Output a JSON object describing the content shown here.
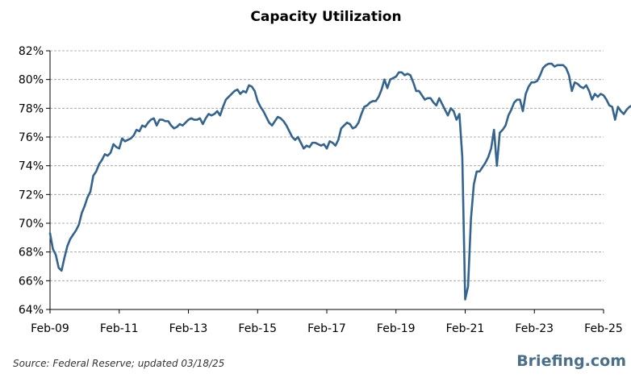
{
  "source": "Source: Federal Reserve; updated 03/18/25",
  "brand": "Briefing.com",
  "chart_data": {
    "type": "line",
    "title": "Capacity Utilization",
    "xlabel": "",
    "ylabel": "",
    "ylim": [
      64,
      82
    ],
    "yticks": [
      {
        "v": 64,
        "label": "64%"
      },
      {
        "v": 66,
        "label": "66%"
      },
      {
        "v": 68,
        "label": "68%"
      },
      {
        "v": 70,
        "label": "70%"
      },
      {
        "v": 72,
        "label": "72%"
      },
      {
        "v": 74,
        "label": "74%"
      },
      {
        "v": 76,
        "label": "76%"
      },
      {
        "v": 78,
        "label": "78%"
      },
      {
        "v": 80,
        "label": "80%"
      },
      {
        "v": 82,
        "label": "82%"
      }
    ],
    "xticks": [
      {
        "v": "2009-02",
        "label": "Feb-09"
      },
      {
        "v": "2011-02",
        "label": "Feb-11"
      },
      {
        "v": "2013-02",
        "label": "Feb-13"
      },
      {
        "v": "2015-02",
        "label": "Feb-15"
      },
      {
        "v": "2017-02",
        "label": "Feb-17"
      },
      {
        "v": "2019-02",
        "label": "Feb-19"
      },
      {
        "v": "2021-02",
        "label": "Feb-21"
      },
      {
        "v": "2023-02",
        "label": "Feb-23"
      },
      {
        "v": "2025-02",
        "label": "Feb-25"
      }
    ],
    "grid": true,
    "color": "#33638f",
    "series": [
      {
        "start": "2009-02",
        "values": [
          69.3,
          68.2,
          67.8,
          66.9,
          66.7,
          67.6,
          68.4,
          68.9,
          69.2,
          69.5,
          69.9,
          70.7,
          71.2,
          71.8,
          72.2,
          73.3,
          73.6,
          74.1,
          74.4,
          74.8,
          74.7,
          74.9,
          75.5,
          75.3,
          75.2,
          75.9,
          75.7,
          75.8,
          75.9,
          76.1,
          76.5,
          76.4,
          76.8,
          76.7,
          77.0,
          77.2,
          77.3,
          76.8,
          77.2,
          77.2,
          77.1,
          77.1,
          76.8,
          76.6,
          76.7,
          76.9,
          76.8,
          77.0,
          77.2,
          77.3,
          77.2,
          77.2,
          77.3,
          76.9,
          77.3,
          77.6,
          77.5,
          77.6,
          77.8,
          77.5,
          78.1,
          78.6,
          78.8,
          79.0,
          79.2,
          79.3,
          79.0,
          79.2,
          79.1,
          79.6,
          79.5,
          79.2,
          78.5,
          78.1,
          77.8,
          77.4,
          77.0,
          76.8,
          77.1,
          77.4,
          77.3,
          77.1,
          76.8,
          76.4,
          76.0,
          75.8,
          76.0,
          75.6,
          75.2,
          75.4,
          75.3,
          75.6,
          75.6,
          75.5,
          75.4,
          75.5,
          75.2,
          75.7,
          75.6,
          75.4,
          75.8,
          76.6,
          76.8,
          77.0,
          76.9,
          76.6,
          76.7,
          77.0,
          77.6,
          78.1,
          78.2,
          78.4,
          78.5,
          78.5,
          78.8,
          79.3,
          80.0,
          79.4,
          80.0,
          80.1,
          80.2,
          80.5,
          80.5,
          80.3,
          80.4,
          80.3,
          79.8,
          79.2,
          79.2,
          78.9,
          78.6,
          78.7,
          78.7,
          78.4,
          78.2,
          78.7,
          78.3,
          77.9,
          77.5,
          78.0,
          77.8,
          77.2,
          77.6,
          74.6,
          64.7,
          65.6,
          70.3,
          72.7,
          73.6,
          73.6,
          73.9,
          74.2,
          74.6,
          75.2,
          76.5,
          74.0,
          76.3,
          76.5,
          76.8,
          77.5,
          77.9,
          78.4,
          78.6,
          78.6,
          77.8,
          79.0,
          79.5,
          79.8,
          79.8,
          79.9,
          80.3,
          80.8,
          81.0,
          81.1,
          81.1,
          80.9,
          81.0,
          81.0,
          81.0,
          80.8,
          80.3,
          79.2,
          79.8,
          79.7,
          79.5,
          79.4,
          79.6,
          79.2,
          78.6,
          79.0,
          78.8,
          79.0,
          78.9,
          78.6,
          78.2,
          78.1,
          77.2,
          78.1,
          77.8,
          77.6,
          77.9,
          78.1,
          78.2,
          77.5,
          77.9,
          77.7,
          77.4,
          77.0,
          76.8,
          77.6,
          77.7,
          78.2
        ]
      }
    ]
  }
}
